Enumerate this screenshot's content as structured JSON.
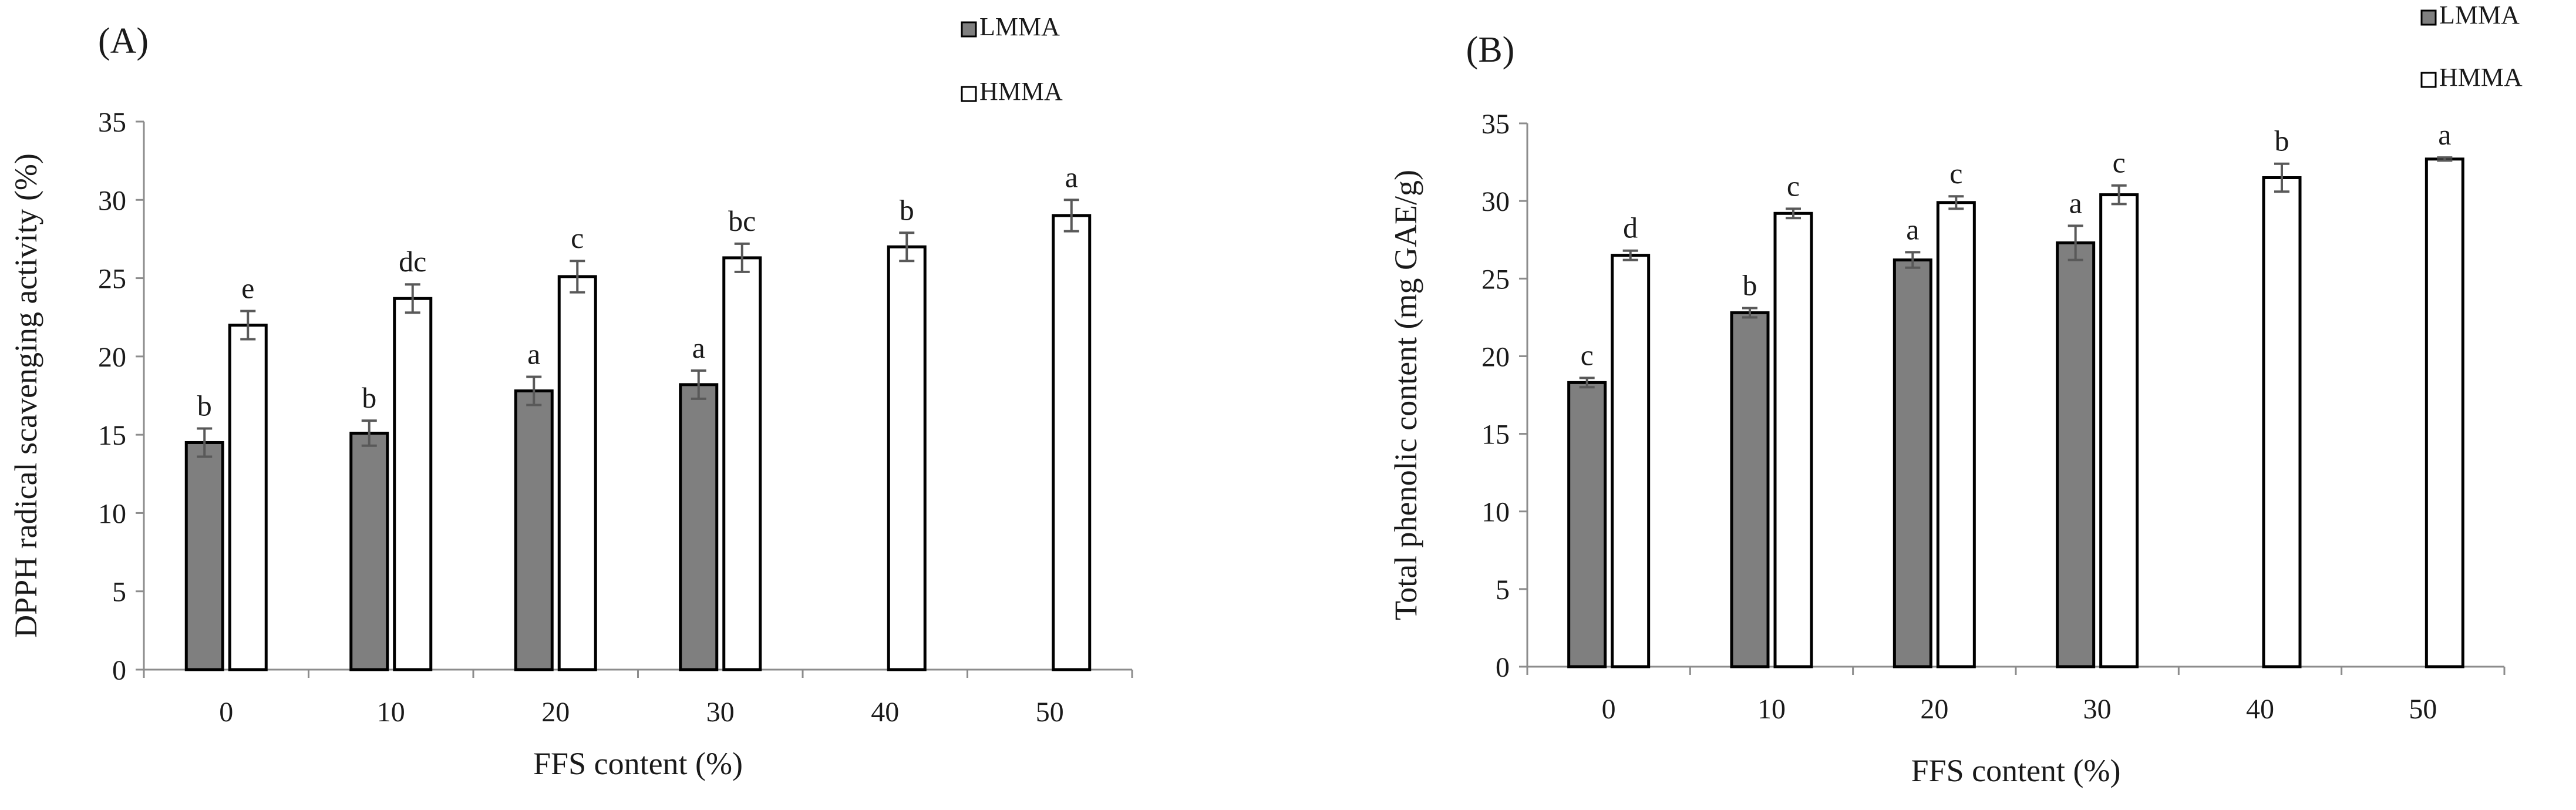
{
  "chart_data": [
    {
      "type": "bar",
      "panel_label": "(A)",
      "title": "",
      "xlabel": "FFS content (%)",
      "ylabel": "DPPH radical scavenging activity (%)",
      "ylim": [
        0,
        35
      ],
      "yticks": [
        "0",
        "5",
        "10",
        "15",
        "20",
        "25",
        "30",
        "35"
      ],
      "categories": [
        "0",
        "10",
        "20",
        "30",
        "40",
        "50"
      ],
      "legend_position": "top-right",
      "series": [
        {
          "name": "LMMA",
          "color": "#7f7f7f",
          "values": [
            14.5,
            15.1,
            17.8,
            18.2,
            null,
            null
          ],
          "errors": [
            0.9,
            0.8,
            0.9,
            0.9,
            null,
            null
          ],
          "letters": [
            "b",
            "b",
            "a",
            "a",
            "",
            ""
          ]
        },
        {
          "name": "HMMA",
          "color": "#ffffff",
          "values": [
            22.0,
            23.7,
            25.1,
            26.3,
            27.0,
            29.0
          ],
          "errors": [
            0.9,
            0.9,
            1.0,
            0.9,
            0.9,
            1.0
          ],
          "letters": [
            "e",
            "dc",
            "c",
            "bc",
            "b",
            "a"
          ]
        }
      ]
    },
    {
      "type": "bar",
      "panel_label": "(B)",
      "title": "",
      "xlabel": "FFS content (%)",
      "ylabel": "Total phenolic content (mg GAE/g)",
      "ylim": [
        0,
        35
      ],
      "yticks": [
        "0",
        "5",
        "10",
        "15",
        "20",
        "25",
        "30",
        "35"
      ],
      "categories": [
        "0",
        "10",
        "20",
        "30",
        "40",
        "50"
      ],
      "legend_position": "top-right",
      "series": [
        {
          "name": "LMMA",
          "color": "#7f7f7f",
          "values": [
            18.3,
            22.8,
            26.2,
            27.3,
            null,
            null
          ],
          "errors": [
            0.3,
            0.3,
            0.5,
            1.1,
            null,
            null
          ],
          "letters": [
            "c",
            "b",
            "a",
            "a",
            "",
            ""
          ]
        },
        {
          "name": "HMMA",
          "color": "#ffffff",
          "values": [
            26.5,
            29.2,
            29.9,
            30.4,
            31.5,
            32.7
          ],
          "errors": [
            0.3,
            0.3,
            0.4,
            0.6,
            0.9,
            0.1
          ],
          "letters": [
            "d",
            "c",
            "c",
            "c",
            "b",
            "a"
          ]
        }
      ]
    }
  ]
}
